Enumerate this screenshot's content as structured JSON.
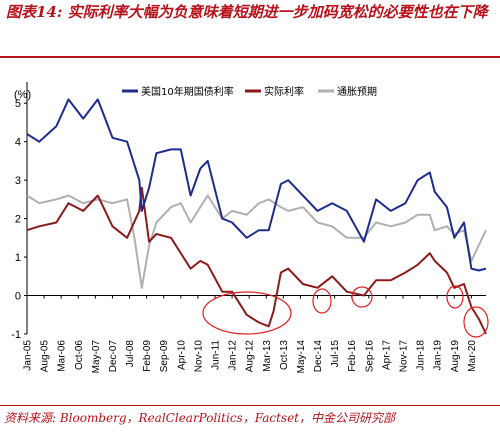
{
  "header": {
    "title": "图表14:  实际利率大幅为负意味着短期进一步加码宽松的必要性也在下降"
  },
  "footer": {
    "source": "资料来源:  Bloomberg，RealClearPolitics，Factset，中金公司研究部"
  },
  "chart_data": {
    "type": "line",
    "ylabel": "(%)",
    "ylim": [
      -1,
      5.5
    ],
    "yticks": [
      -1,
      0,
      1,
      2,
      3,
      4,
      5
    ],
    "xlim": [
      "2005-01",
      "2020-09"
    ],
    "xticks": [
      "Jan-05",
      "Aug-05",
      "Mar-06",
      "Oct-06",
      "May-07",
      "Dec-07",
      "Jul-08",
      "Feb-09",
      "Sep-09",
      "Apr-10",
      "Nov-10",
      "Jun-11",
      "Jan-12",
      "Aug-12",
      "Mar-13",
      "Oct-13",
      "May-14",
      "Dec-14",
      "Jul-15",
      "Feb-16",
      "Sep-16",
      "Apr-17",
      "Nov-17",
      "Jun-18",
      "Jan-19",
      "Aug-19",
      "Mar-20"
    ],
    "legend_position": "top",
    "series": [
      {
        "name": "美国10年期国债利率",
        "color": "#1f2c8f",
        "x": [
          "2005-01",
          "2005-06",
          "2006-01",
          "2006-06",
          "2006-12",
          "2007-06",
          "2007-12",
          "2008-06",
          "2008-11",
          "2008-12",
          "2009-03",
          "2009-06",
          "2009-12",
          "2010-04",
          "2010-08",
          "2010-12",
          "2011-03",
          "2011-09",
          "2012-01",
          "2012-07",
          "2012-12",
          "2013-04",
          "2013-09",
          "2013-12",
          "2014-06",
          "2014-12",
          "2015-06",
          "2015-12",
          "2016-07",
          "2016-12",
          "2017-06",
          "2017-12",
          "2018-05",
          "2018-10",
          "2018-12",
          "2019-05",
          "2019-08",
          "2019-12",
          "2020-03",
          "2020-06",
          "2020-09"
        ],
        "y": [
          4.2,
          4.0,
          4.4,
          5.1,
          4.6,
          5.1,
          4.1,
          4.0,
          3.0,
          2.2,
          2.8,
          3.7,
          3.8,
          3.8,
          2.6,
          3.3,
          3.5,
          2.0,
          1.9,
          1.5,
          1.7,
          1.7,
          2.9,
          3.0,
          2.6,
          2.2,
          2.4,
          2.2,
          1.4,
          2.5,
          2.2,
          2.4,
          3.0,
          3.2,
          2.7,
          2.3,
          1.5,
          1.9,
          0.7,
          0.65,
          0.7
        ]
      },
      {
        "name": "实际利率",
        "color": "#8c1a1a",
        "x": [
          "2005-01",
          "2005-06",
          "2006-01",
          "2006-06",
          "2006-12",
          "2007-06",
          "2007-12",
          "2008-06",
          "2008-11",
          "2008-12",
          "2009-03",
          "2009-06",
          "2009-12",
          "2010-04",
          "2010-08",
          "2010-12",
          "2011-03",
          "2011-09",
          "2012-01",
          "2012-07",
          "2012-12",
          "2013-04",
          "2013-06",
          "2013-09",
          "2013-12",
          "2014-06",
          "2014-12",
          "2015-06",
          "2015-12",
          "2016-07",
          "2016-12",
          "2017-06",
          "2017-12",
          "2018-05",
          "2018-10",
          "2018-12",
          "2019-05",
          "2019-08",
          "2019-12",
          "2020-03",
          "2020-06",
          "2020-09"
        ],
        "y": [
          1.7,
          1.8,
          1.9,
          2.4,
          2.2,
          2.6,
          1.8,
          1.5,
          2.2,
          2.8,
          1.4,
          1.6,
          1.5,
          1.1,
          0.7,
          0.9,
          0.8,
          0.1,
          0.1,
          -0.5,
          -0.7,
          -0.8,
          -0.4,
          0.6,
          0.7,
          0.3,
          0.2,
          0.5,
          0.1,
          0.0,
          0.4,
          0.4,
          0.6,
          0.8,
          1.1,
          0.9,
          0.6,
          0.2,
          0.3,
          -0.3,
          -0.6,
          -1.0
        ]
      },
      {
        "name": "通胀预期",
        "color": "#b0b0b0",
        "x": [
          "2005-01",
          "2005-06",
          "2006-01",
          "2006-06",
          "2006-12",
          "2007-06",
          "2007-12",
          "2008-06",
          "2008-09",
          "2008-12",
          "2009-03",
          "2009-06",
          "2009-12",
          "2010-04",
          "2010-08",
          "2010-12",
          "2011-03",
          "2011-09",
          "2012-01",
          "2012-07",
          "2012-12",
          "2013-04",
          "2013-09",
          "2013-12",
          "2014-06",
          "2014-12",
          "2015-06",
          "2015-12",
          "2016-07",
          "2016-12",
          "2017-06",
          "2017-12",
          "2018-05",
          "2018-10",
          "2018-12",
          "2019-05",
          "2019-08",
          "2019-12",
          "2020-03",
          "2020-06",
          "2020-09"
        ],
        "y": [
          2.6,
          2.4,
          2.5,
          2.6,
          2.4,
          2.5,
          2.4,
          2.5,
          1.5,
          0.2,
          1.3,
          1.9,
          2.3,
          2.4,
          1.9,
          2.3,
          2.6,
          2.0,
          2.2,
          2.1,
          2.4,
          2.5,
          2.3,
          2.2,
          2.3,
          1.9,
          1.8,
          1.5,
          1.5,
          1.9,
          1.8,
          1.9,
          2.1,
          2.1,
          1.7,
          1.8,
          1.6,
          1.7,
          0.9,
          1.3,
          1.7
        ]
      }
    ]
  }
}
